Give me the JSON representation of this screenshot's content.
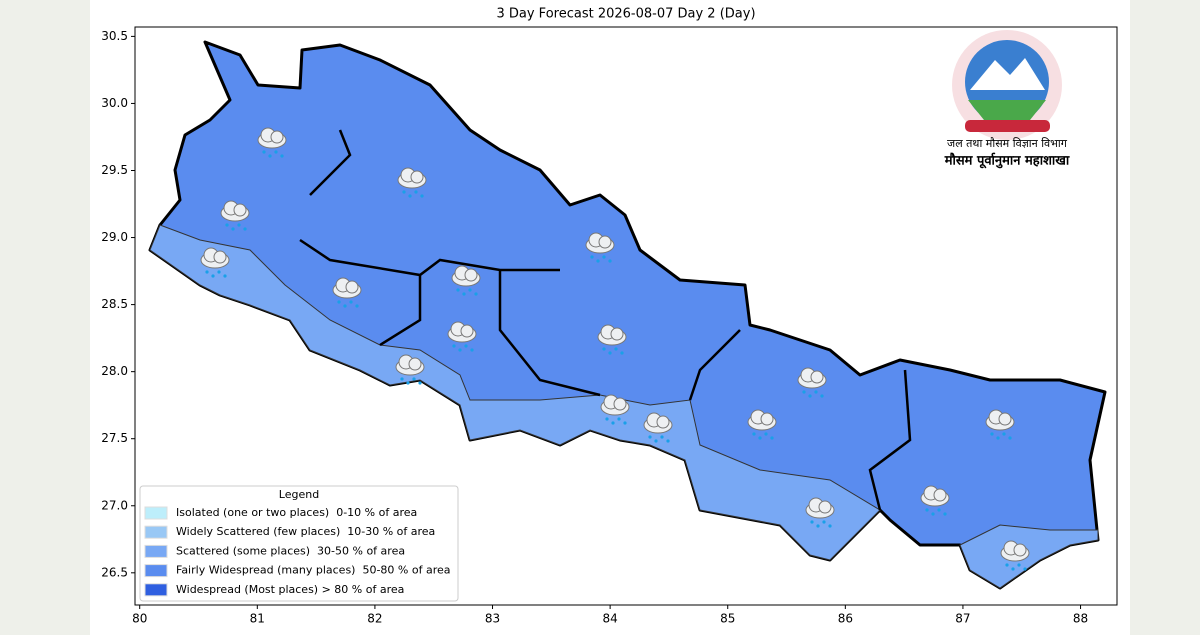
{
  "map": {
    "title": "3 Day Forecast 2026-08-07 Day 2 (Day)",
    "xlim": [
      79.96,
      88.31
    ],
    "ylim": [
      26.26,
      30.57
    ],
    "xticks": [
      80,
      81,
      82,
      83,
      84,
      85,
      86,
      87,
      88
    ],
    "yticks": [
      {
        "value": 26.5,
        "label": "26.5"
      },
      {
        "value": 27,
        "label": "27.0"
      },
      {
        "value": 27.5,
        "label": "27.5"
      },
      {
        "value": 28,
        "label": "28.0"
      },
      {
        "value": 28.5,
        "label": "28.5"
      },
      {
        "value": 29,
        "label": "29.0"
      },
      {
        "value": 29.5,
        "label": "29.5"
      },
      {
        "value": 30,
        "label": "30.0"
      },
      {
        "value": 30.5,
        "label": "30.5"
      }
    ],
    "legend": {
      "title": "Legend",
      "items": [
        {
          "name": "Isolated (one or two places)  0-10 % of area",
          "color": "#bdeefb"
        },
        {
          "name": "Widely Scattered (few places)  10-30 % of area",
          "color": "#99c8f5"
        },
        {
          "name": "Scattered (some places)  30-50 % of area",
          "color": "#78a8f4"
        },
        {
          "name": "Fairly Widespread (many places)  50-80 % of area",
          "color": "#5a8cef"
        },
        {
          "name": "Widespread (Most places) > 80 % of area",
          "color": "#2f5fe0"
        }
      ]
    },
    "logo": {
      "line1": "जल तथा मौसम विज्ञान विभाग",
      "line2": "मौसम पूर्वानुमान महाशाखा"
    }
  }
}
